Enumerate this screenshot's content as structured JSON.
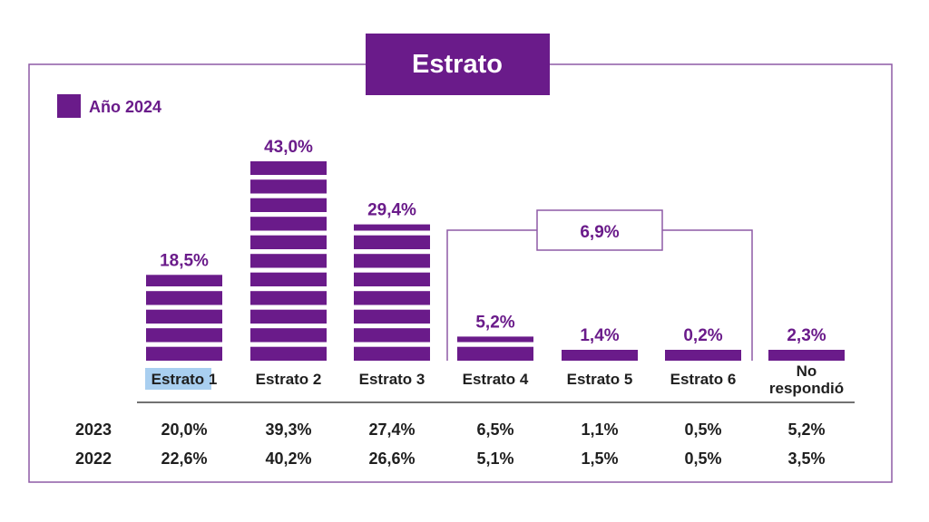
{
  "chart_data": {
    "type": "bar",
    "title": "Estrato",
    "legend": [
      {
        "label": "Año 2024",
        "color": "#6a1b8a"
      }
    ],
    "categories": [
      "Estrato 1",
      "Estrato 2",
      "Estrato 3",
      "Estrato 4",
      "Estrato 5",
      "Estrato 6",
      "No respondió"
    ],
    "series": [
      {
        "name": "Año 2024",
        "values": [
          18.5,
          43.0,
          29.4,
          5.2,
          1.4,
          0.2,
          2.3
        ],
        "labels": [
          "18,5%",
          "43,0%",
          "29,4%",
          "5,2%",
          "1,4%",
          "0,2%",
          "2,3%"
        ]
      }
    ],
    "group_bracket": {
      "categories": [
        "Estrato 4",
        "Estrato 5",
        "Estrato 6"
      ],
      "value": 6.9,
      "label": "6,9%"
    },
    "comparison_rows": [
      {
        "year": "2023",
        "values": [
          "20,0%",
          "39,3%",
          "27,4%",
          "6,5%",
          "1,1%",
          "0,5%",
          "5,2%"
        ]
      },
      {
        "year": "2022",
        "values": [
          "22,6%",
          "40,2%",
          "26,6%",
          "5,1%",
          "1,5%",
          "0,5%",
          "3,5%"
        ]
      }
    ]
  },
  "colors": {
    "accent": "#6a1b8a",
    "frame": "#8e5aa6",
    "text": "#1f1f1f",
    "highlight": "#a9cff0"
  }
}
